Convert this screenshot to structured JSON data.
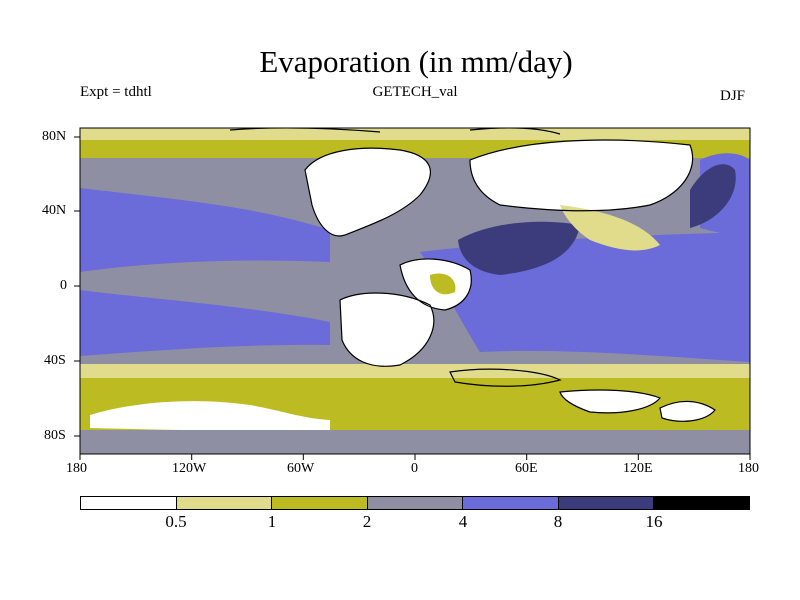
{
  "title": "Evaporation (in mm/day)",
  "experiment": "Expt = tdhtl",
  "source": "GETECH_val",
  "season": "DJF",
  "axes": {
    "x_ticks": [
      "180",
      "120W",
      "60W",
      "0",
      "60E",
      "120E",
      "180"
    ],
    "y_ticks": [
      "80N",
      "40N",
      "0",
      "40S",
      "80S"
    ]
  },
  "colorbar": {
    "labels": [
      "0.5",
      "1",
      "2",
      "4",
      "8",
      "16"
    ],
    "colors": [
      "#ffffff",
      "#e0dc8c",
      "#bdbb22",
      "#8e8fa2",
      "#6b6bd9",
      "#3c3c7d",
      "#000000"
    ]
  },
  "colors": {
    "ocean_low_lat": "#6b6bd9",
    "ocean_mid": "#8e8fa2",
    "dry_land": "#ffffff",
    "light_olive": "#e0dc8c",
    "olive": "#bdbb22",
    "high_evap": "#3c3c7d"
  }
}
